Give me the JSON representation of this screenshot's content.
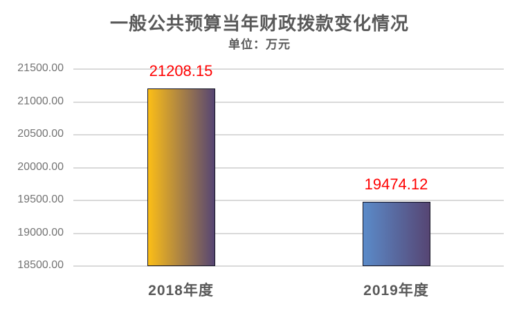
{
  "header": {
    "title": "一般公共预算当年财政拨款变化情况",
    "subtitle": "单位：万元"
  },
  "chart_data": {
    "type": "bar",
    "title": "一般公共预算当年财政拨款变化情况",
    "subtitle": "单位：万元",
    "xlabel": "",
    "ylabel": "",
    "categories": [
      "2018年度",
      "2019年度"
    ],
    "values": [
      21208.15,
      19474.12
    ],
    "data_labels": [
      "21208.15",
      "19474.12"
    ],
    "bar_gradients": [
      [
        "#FCBE17",
        "#564573"
      ],
      [
        "#5B8BC9",
        "#564573"
      ]
    ],
    "ylim": [
      18500,
      21500
    ],
    "ytick_step": 500,
    "yticks": [
      "21500.00",
      "21000.00",
      "20500.00",
      "20000.00",
      "19500.00",
      "19000.00",
      "18500.00"
    ],
    "grid": true,
    "legend": false,
    "colors": {
      "data_label": "#FF0000",
      "gridline": "#D9D9D9",
      "bar_border": "#121222",
      "axis_tick_text": "#737373",
      "category_text": "#595959",
      "title_text": "#595959",
      "background": "#FFFFFF"
    }
  }
}
